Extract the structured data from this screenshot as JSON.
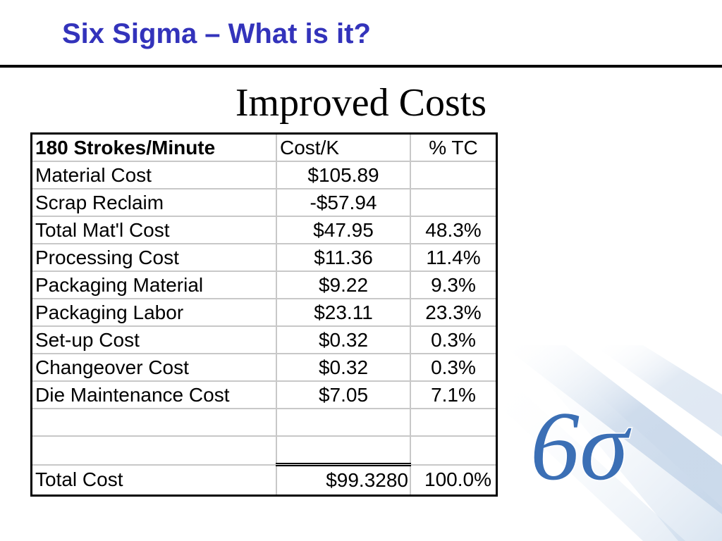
{
  "slide": {
    "title": "Six Sigma – What is it?",
    "subtitle": "Improved Costs"
  },
  "table": {
    "header": {
      "label": "180 Strokes/Minute",
      "cost": "Cost/K",
      "pct": "% TC"
    },
    "rows": [
      {
        "label": "Material Cost",
        "cost": "$105.89",
        "pct": ""
      },
      {
        "label": "Scrap Reclaim",
        "cost": "-$57.94",
        "pct": ""
      },
      {
        "label": "Total Mat'l Cost",
        "cost": "$47.95",
        "pct": "48.3%"
      },
      {
        "label": "Processing Cost",
        "cost": "$11.36",
        "pct": "11.4%"
      },
      {
        "label": "Packaging Material",
        "cost": "$9.22",
        "pct": "9.3%"
      },
      {
        "label": "Packaging Labor",
        "cost": "$23.11",
        "pct": "23.3%"
      },
      {
        "label": "Set-up Cost",
        "cost": "$0.32",
        "pct": "0.3%"
      },
      {
        "label": "Changeover Cost",
        "cost": "$0.32",
        "pct": "0.3%"
      },
      {
        "label": "Die Maintenance Cost",
        "cost": "$7.05",
        "pct": "7.1%"
      }
    ],
    "total": {
      "label": "Total Cost",
      "cost": "$99.3280",
      "pct": "100.0%"
    }
  },
  "logo": {
    "text": "6σ",
    "color": "#3b6fb5"
  },
  "colors": {
    "title": "#3333bb",
    "rule": "#000000"
  }
}
